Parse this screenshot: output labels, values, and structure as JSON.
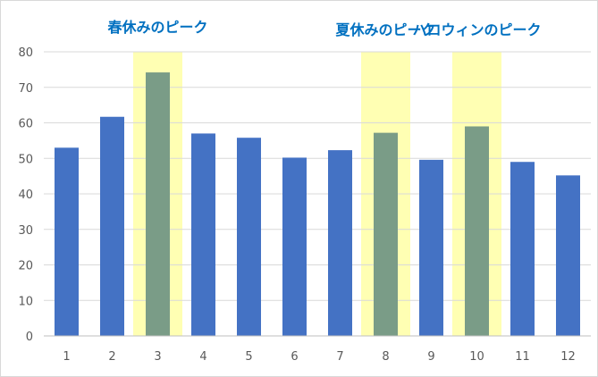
{
  "chart_data": {
    "type": "bar",
    "categories": [
      "1",
      "2",
      "3",
      "4",
      "5",
      "6",
      "7",
      "8",
      "9",
      "10",
      "11",
      "12"
    ],
    "series": [
      {
        "values": [
          53,
          61.7,
          74.2,
          57,
          55.8,
          50.2,
          52.3,
          57.2,
          49.6,
          59,
          49,
          45.2
        ]
      }
    ],
    "ylim": [
      0,
      80
    ],
    "yticks": [
      0,
      10,
      20,
      30,
      40,
      50,
      60,
      70,
      80
    ],
    "grid": true,
    "highlighted_categories": [
      "3",
      "8",
      "10"
    ],
    "annotations": [
      {
        "text": "春休みのピーク",
        "category": "3"
      },
      {
        "text": "夏休みのピーク",
        "category": "8"
      },
      {
        "text": "ハロウィンのピーク",
        "category": "10"
      }
    ],
    "colors": {
      "bar": "#4472C4",
      "bar_highlighted": "#7A9C87",
      "highlight_band": "#FFFFB3",
      "annotation_text": "#0070C0",
      "grid": "#d9d9d9",
      "axis": "#bfbfbf"
    }
  }
}
